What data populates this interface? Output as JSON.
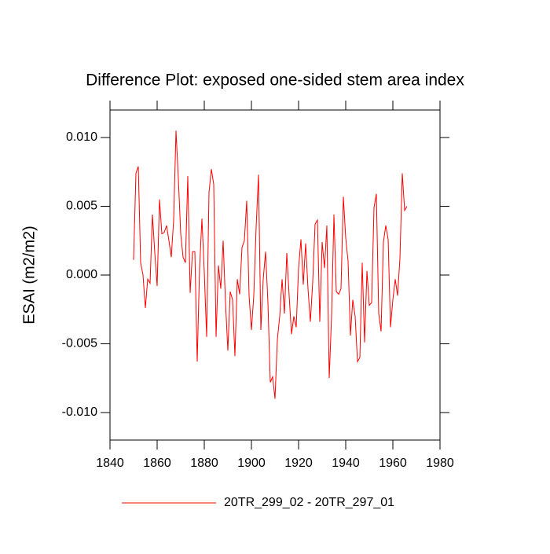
{
  "chart_data": {
    "type": "line",
    "title": "Difference Plot: exposed one-sided stem area index",
    "y_label": "ESAI  (m2/m2)",
    "x": [
      1850,
      1851,
      1852,
      1853,
      1854,
      1855,
      1856,
      1857,
      1858,
      1859,
      1860,
      1861,
      1862,
      1863,
      1864,
      1865,
      1866,
      1867,
      1868,
      1869,
      1870,
      1871,
      1872,
      1873,
      1874,
      1875,
      1876,
      1877,
      1878,
      1879,
      1880,
      1881,
      1882,
      1883,
      1884,
      1885,
      1886,
      1887,
      1888,
      1889,
      1890,
      1891,
      1892,
      1893,
      1894,
      1895,
      1896,
      1897,
      1898,
      1899,
      1900,
      1901,
      1902,
      1903,
      1904,
      1905,
      1906,
      1907,
      1908,
      1909,
      1910,
      1911,
      1912,
      1913,
      1914,
      1915,
      1916,
      1917,
      1918,
      1919,
      1920,
      1921,
      1922,
      1923,
      1924,
      1925,
      1926,
      1927,
      1928,
      1929,
      1930,
      1931,
      1932,
      1933,
      1934,
      1935,
      1936,
      1937,
      1938,
      1939,
      1940,
      1941,
      1942,
      1943,
      1944,
      1945,
      1946,
      1947,
      1948,
      1949,
      1950,
      1951,
      1952,
      1953,
      1954,
      1955,
      1956,
      1957,
      1958,
      1959,
      1960,
      1961,
      1962,
      1963,
      1964,
      1965,
      1966
    ],
    "series": [
      {
        "name": "20TR_299_02 - 20TR_297_01",
        "color": "#ff0000",
        "values": [
          0.0011,
          0.0074,
          0.0079,
          0.0009,
          0.0,
          -0.0024,
          -0.0003,
          -0.0006,
          0.0044,
          0.0016,
          -0.0008,
          0.0055,
          0.003,
          0.0031,
          0.0036,
          0.0025,
          0.0013,
          0.004,
          0.0105,
          0.007,
          0.003,
          0.0013,
          0.0009,
          0.0072,
          -0.0013,
          0.0017,
          0.0017,
          -0.0063,
          0.0005,
          0.0041,
          0.0002,
          -0.0045,
          0.006,
          0.0077,
          0.0066,
          -0.0045,
          0.0007,
          -0.001,
          0.0025,
          -0.002,
          -0.0055,
          -0.0012,
          -0.0018,
          -0.0059,
          -0.0003,
          -0.0014,
          0.002,
          0.0025,
          0.0054,
          -0.0015,
          -0.004,
          -0.0015,
          0.0035,
          0.0073,
          -0.004,
          -0.0003,
          0.0017,
          -0.002,
          -0.0078,
          -0.0074,
          -0.009,
          -0.0047,
          -0.003,
          -0.0003,
          -0.0028,
          0.0016,
          -0.0015,
          -0.0043,
          -0.003,
          -0.0038,
          0.0005,
          0.0026,
          -0.0007,
          0.0023,
          -0.001,
          -0.0034,
          -0.0005,
          0.0037,
          0.004,
          -0.0034,
          0.0024,
          0.0005,
          0.0036,
          -0.0075,
          -0.003,
          0.0044,
          -0.0012,
          -0.0014,
          -0.001,
          0.0057,
          0.0027,
          0.001,
          -0.0044,
          -0.0018,
          -0.003,
          -0.0063,
          -0.006,
          0.0009,
          -0.0049,
          0.0003,
          -0.0022,
          -0.002,
          0.0049,
          0.0059,
          -0.0028,
          -0.0041,
          0.0024,
          0.0036,
          0.0026,
          -0.0038,
          -0.0018,
          -0.0003,
          -0.0015,
          0.0012,
          0.0074,
          0.0047,
          0.005
        ]
      }
    ],
    "xlim": [
      1840,
      1980
    ],
    "xticks": [
      1840,
      1860,
      1880,
      1900,
      1920,
      1940,
      1960,
      1980
    ],
    "ylim": [
      -0.012,
      0.012
    ],
    "yticks": [
      {
        "value": -0.01,
        "label": "-0.010"
      },
      {
        "value": -0.005,
        "label": "-0.005"
      },
      {
        "value": 0,
        "label": "0.000"
      },
      {
        "value": 0.005,
        "label": "0.005"
      },
      {
        "value": 0.01,
        "label": "0.010"
      }
    ],
    "grid": false,
    "legend": "bottom"
  }
}
